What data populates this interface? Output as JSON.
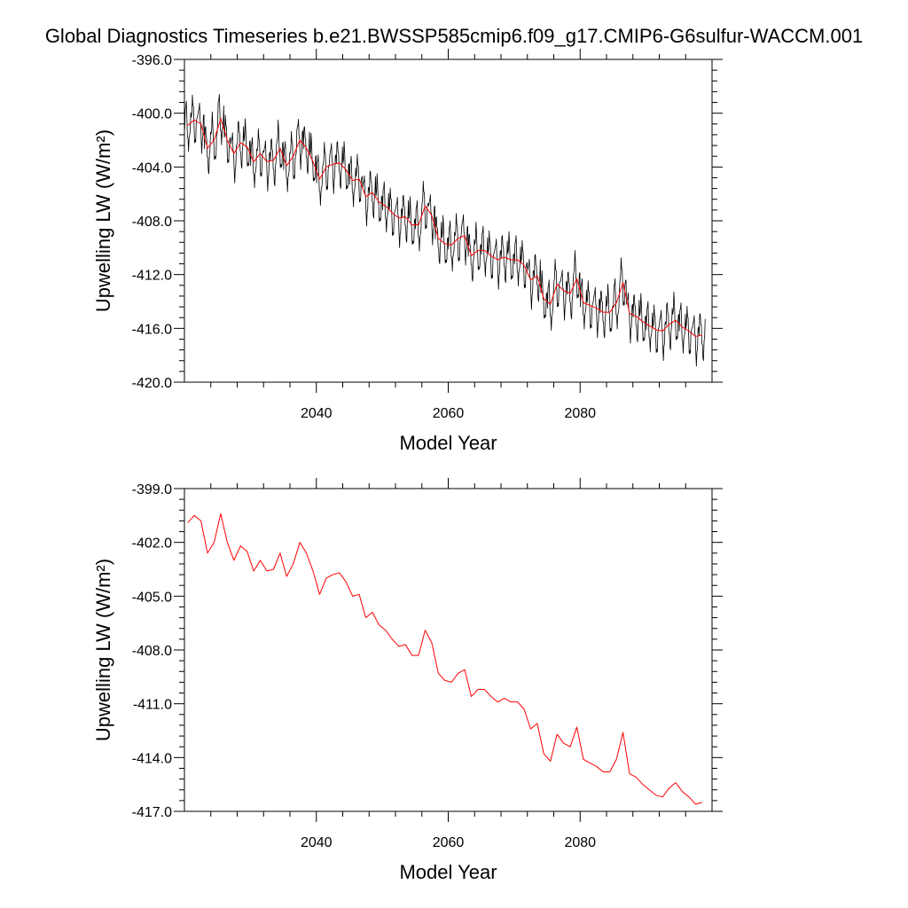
{
  "title": "Global Diagnostics Timeseries b.e21.BWSSP585cmip6.f09_g17.CMIP6-G6sulfur-WACCM.001",
  "colors": {
    "monthly": "#000000",
    "annual": "#ff0000",
    "axis": "#000000"
  },
  "chart_data": [
    {
      "type": "line",
      "xlabel": "Model Year",
      "ylabel": "Upwelling LW (W/m²)",
      "xlim": [
        2020,
        2100
      ],
      "ylim": [
        -420.0,
        -396.0
      ],
      "x_ticks": [
        2040,
        2060,
        2080
      ],
      "x_tick_labels": [
        "2040",
        "2060",
        "2080"
      ],
      "y_ticks": [
        -420.0,
        -416.0,
        -412.0,
        -408.0,
        -404.0,
        -400.0,
        -396.0
      ],
      "y_tick_labels": [
        "-420.0",
        "-416.0",
        "-412.0",
        "-408.0",
        "-404.0",
        "-400.0",
        "-396.0"
      ],
      "grid": false,
      "series": [
        {
          "kind": "monthly",
          "color": "#000000",
          "x_start": 2020.042,
          "x_step": 0.0833333,
          "seasonal_amplitude": 1.7,
          "values_note_free": true,
          "annual_base": [
            -400.9,
            -400.5,
            -400.8,
            -402.6,
            -402.0,
            -400.4,
            -402.0,
            -403.0,
            -402.2,
            -402.5,
            -403.6,
            -403.0,
            -403.6,
            -403.5,
            -402.6,
            -403.9,
            -403.2,
            -402.0,
            -402.6,
            -403.6,
            -404.9,
            -404.0,
            -403.8,
            -403.7,
            -404.2,
            -405.0,
            -404.9,
            -406.2,
            -405.9,
            -406.6,
            -406.9,
            -407.4,
            -407.8,
            -407.7,
            -408.3,
            -408.3,
            -406.9,
            -407.6,
            -409.3,
            -409.7,
            -409.8,
            -409.3,
            -409.1,
            -410.6,
            -410.2,
            -410.2,
            -410.6,
            -410.9,
            -410.7,
            -410.9,
            -410.9,
            -411.3,
            -412.4,
            -412.1,
            -413.8,
            -414.2,
            -412.7,
            -413.2,
            -413.4,
            -412.3,
            -414.1,
            -414.3,
            -414.5,
            -414.8,
            -414.8,
            -414.1,
            -412.6,
            -414.9,
            -415.1,
            -415.5,
            -415.8,
            -416.1,
            -416.2,
            -415.7,
            -415.4,
            -415.9,
            -416.2,
            -416.6,
            -416.5
          ],
          "seasonal_pattern": [
            0.2,
            1.0,
            1.6,
            1.3,
            0.5,
            -0.4,
            -1.2,
            -1.7,
            -1.4,
            -0.7,
            0.1,
            0.7
          ]
        },
        {
          "kind": "annual",
          "color": "#ff0000",
          "x": [
            2020.5,
            2021.5,
            2022.5,
            2023.5,
            2024.5,
            2025.5,
            2026.5,
            2027.5,
            2028.5,
            2029.5,
            2030.5,
            2031.5,
            2032.5,
            2033.5,
            2034.5,
            2035.5,
            2036.5,
            2037.5,
            2038.5,
            2039.5,
            2040.5,
            2041.5,
            2042.5,
            2043.5,
            2044.5,
            2045.5,
            2046.5,
            2047.5,
            2048.5,
            2049.5,
            2050.5,
            2051.5,
            2052.5,
            2053.5,
            2054.5,
            2055.5,
            2056.5,
            2057.5,
            2058.5,
            2059.5,
            2060.5,
            2061.5,
            2062.5,
            2063.5,
            2064.5,
            2065.5,
            2066.5,
            2067.5,
            2068.5,
            2069.5,
            2070.5,
            2071.5,
            2072.5,
            2073.5,
            2074.5,
            2075.5,
            2076.5,
            2077.5,
            2078.5,
            2079.5,
            2080.5,
            2081.5,
            2082.5,
            2083.5,
            2084.5,
            2085.5,
            2086.5,
            2087.5,
            2088.5,
            2089.5,
            2090.5,
            2091.5,
            2092.5,
            2093.5,
            2094.5,
            2095.5,
            2096.5,
            2097.5,
            2098.5
          ],
          "values": [
            -400.9,
            -400.5,
            -400.8,
            -402.6,
            -402.0,
            -400.4,
            -402.0,
            -403.0,
            -402.2,
            -402.5,
            -403.6,
            -403.0,
            -403.6,
            -403.5,
            -402.6,
            -403.9,
            -403.2,
            -402.0,
            -402.6,
            -403.6,
            -404.9,
            -404.0,
            -403.8,
            -403.7,
            -404.2,
            -405.0,
            -404.9,
            -406.2,
            -405.9,
            -406.6,
            -406.9,
            -407.4,
            -407.8,
            -407.7,
            -408.3,
            -408.3,
            -406.9,
            -407.6,
            -409.3,
            -409.7,
            -409.8,
            -409.3,
            -409.1,
            -410.6,
            -410.2,
            -410.2,
            -410.6,
            -410.9,
            -410.7,
            -410.9,
            -410.9,
            -411.3,
            -412.4,
            -412.1,
            -413.8,
            -414.2,
            -412.7,
            -413.2,
            -413.4,
            -412.3,
            -414.1,
            -414.3,
            -414.5,
            -414.8,
            -414.8,
            -414.1,
            -412.6,
            -414.9,
            -415.1,
            -415.5,
            -415.8,
            -416.1,
            -416.2,
            -415.7,
            -415.4,
            -415.9,
            -416.2,
            -416.6,
            -416.5
          ]
        }
      ]
    },
    {
      "type": "line",
      "xlabel": "Model Year",
      "ylabel": "Upwelling LW (W/m²)",
      "xlim": [
        2020,
        2100
      ],
      "ylim": [
        -417.0,
        -399.0
      ],
      "x_ticks": [
        2040,
        2060,
        2080
      ],
      "x_tick_labels": [
        "2040",
        "2060",
        "2080"
      ],
      "y_ticks": [
        -417.0,
        -414.0,
        -411.0,
        -408.0,
        -405.0,
        -402.0,
        -399.0
      ],
      "y_tick_labels": [
        "-417.0",
        "-414.0",
        "-411.0",
        "-408.0",
        "-405.0",
        "-402.0",
        "-399.0"
      ],
      "grid": false,
      "series": [
        {
          "kind": "annual",
          "color": "#ff0000",
          "x": [
            2020.5,
            2021.5,
            2022.5,
            2023.5,
            2024.5,
            2025.5,
            2026.5,
            2027.5,
            2028.5,
            2029.5,
            2030.5,
            2031.5,
            2032.5,
            2033.5,
            2034.5,
            2035.5,
            2036.5,
            2037.5,
            2038.5,
            2039.5,
            2040.5,
            2041.5,
            2042.5,
            2043.5,
            2044.5,
            2045.5,
            2046.5,
            2047.5,
            2048.5,
            2049.5,
            2050.5,
            2051.5,
            2052.5,
            2053.5,
            2054.5,
            2055.5,
            2056.5,
            2057.5,
            2058.5,
            2059.5,
            2060.5,
            2061.5,
            2062.5,
            2063.5,
            2064.5,
            2065.5,
            2066.5,
            2067.5,
            2068.5,
            2069.5,
            2070.5,
            2071.5,
            2072.5,
            2073.5,
            2074.5,
            2075.5,
            2076.5,
            2077.5,
            2078.5,
            2079.5,
            2080.5,
            2081.5,
            2082.5,
            2083.5,
            2084.5,
            2085.5,
            2086.5,
            2087.5,
            2088.5,
            2089.5,
            2090.5,
            2091.5,
            2092.5,
            2093.5,
            2094.5,
            2095.5,
            2096.5,
            2097.5,
            2098.5
          ],
          "values": [
            -400.9,
            -400.5,
            -400.8,
            -402.6,
            -402.0,
            -400.4,
            -402.0,
            -403.0,
            -402.2,
            -402.5,
            -403.6,
            -403.0,
            -403.6,
            -403.5,
            -402.6,
            -403.9,
            -403.2,
            -402.0,
            -402.6,
            -403.6,
            -404.9,
            -404.0,
            -403.8,
            -403.7,
            -404.2,
            -405.0,
            -404.9,
            -406.2,
            -405.9,
            -406.6,
            -406.9,
            -407.4,
            -407.8,
            -407.7,
            -408.3,
            -408.3,
            -406.9,
            -407.6,
            -409.3,
            -409.7,
            -409.8,
            -409.3,
            -409.1,
            -410.6,
            -410.2,
            -410.2,
            -410.6,
            -410.9,
            -410.7,
            -410.9,
            -410.9,
            -411.3,
            -412.4,
            -412.1,
            -413.8,
            -414.2,
            -412.7,
            -413.2,
            -413.4,
            -412.3,
            -414.1,
            -414.3,
            -414.5,
            -414.8,
            -414.8,
            -414.1,
            -412.6,
            -414.9,
            -415.1,
            -415.5,
            -415.8,
            -416.1,
            -416.2,
            -415.7,
            -415.4,
            -415.9,
            -416.2,
            -416.6,
            -416.5
          ]
        }
      ]
    }
  ]
}
